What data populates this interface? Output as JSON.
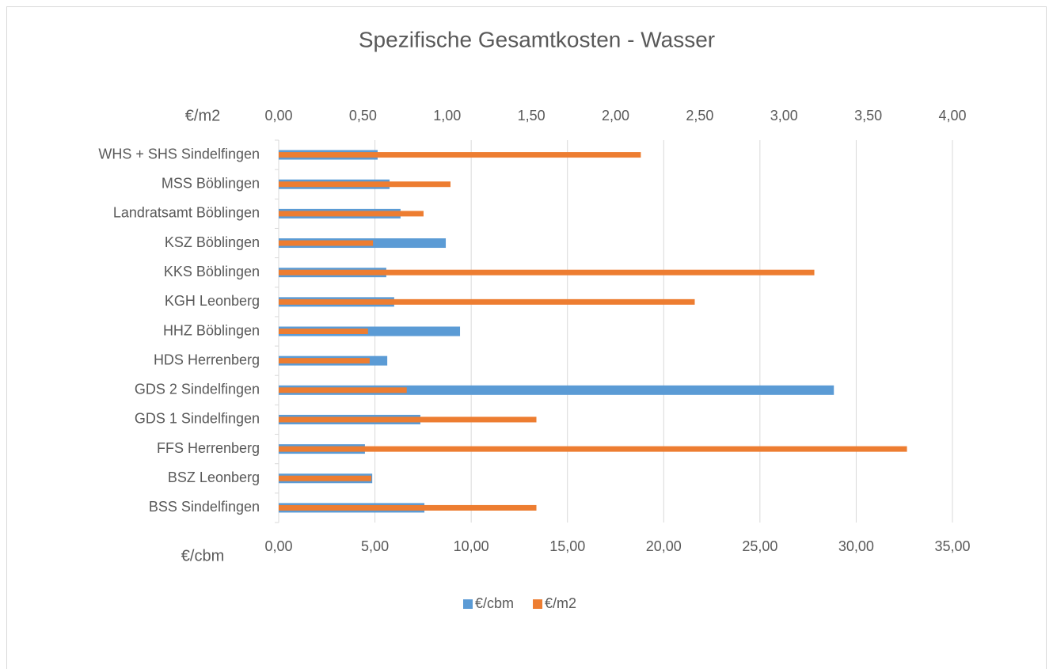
{
  "chart_data": {
    "type": "bar",
    "orientation": "horizontal",
    "title": "Spezifische Gesamtkosten - Wasser",
    "x_label": "€/cbm",
    "x2_label": "€/m2",
    "categories": [
      "WHS + SHS Sindelfingen",
      "MSS Böblingen",
      "Landratsamt Böblingen",
      "KSZ Böblingen",
      "KKS Böblingen",
      "KGH Leonberg",
      "HHZ Böblingen",
      "HDS Herrenberg",
      "GDS 2 Sindelfingen",
      "GDS 1 Sindelfingen",
      "FFS Herrenberg",
      "BSZ Leonberg",
      "BSS Sindelfingen"
    ],
    "series": [
      {
        "name": "€/cbm",
        "color": "#5b9bd5",
        "axis": "x",
        "values": [
          5.14,
          5.76,
          6.33,
          8.68,
          5.59,
          6.0,
          9.42,
          5.64,
          28.84,
          7.36,
          4.48,
          4.86,
          7.57
        ]
      },
      {
        "name": "€/m2",
        "color": "#ed7d31",
        "axis": "x2",
        "values": [
          2.15,
          1.02,
          0.86,
          0.56,
          3.18,
          2.47,
          0.53,
          0.54,
          0.76,
          1.53,
          3.73,
          0.55,
          1.53
        ]
      }
    ],
    "xlim": [
      0,
      35
    ],
    "xticks": [
      {
        "value": 0,
        "label": "0,00"
      },
      {
        "value": 5,
        "label": "5,00"
      },
      {
        "value": 10,
        "label": "10,00"
      },
      {
        "value": 15,
        "label": "15,00"
      },
      {
        "value": 20,
        "label": "20,00"
      },
      {
        "value": 25,
        "label": "25,00"
      },
      {
        "value": 30,
        "label": "30,00"
      },
      {
        "value": 35,
        "label": "35,00"
      }
    ],
    "x2lim": [
      0,
      4
    ],
    "x2ticks": [
      {
        "value": 0,
        "label": "0,00"
      },
      {
        "value": 0.5,
        "label": "0,50"
      },
      {
        "value": 1,
        "label": "1,00"
      },
      {
        "value": 1.5,
        "label": "1,50"
      },
      {
        "value": 2,
        "label": "2,00"
      },
      {
        "value": 2.5,
        "label": "2,50"
      },
      {
        "value": 3,
        "label": "3,00"
      },
      {
        "value": 3.5,
        "label": "3,50"
      },
      {
        "value": 4,
        "label": "4,00"
      }
    ],
    "grid": true,
    "legend": "bottom"
  }
}
